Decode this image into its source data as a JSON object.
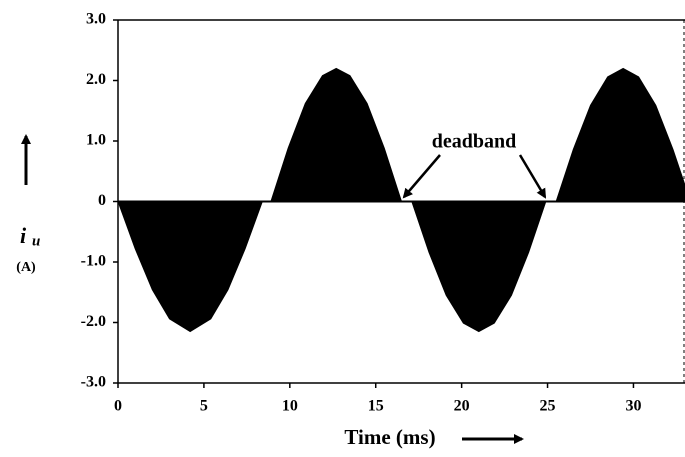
{
  "chart_data": {
    "type": "area",
    "xlabel": "Time (ms)",
    "ylabel": "i",
    "ylabel_sub": "u",
    "yunit": "(A)",
    "annotation": "deadband",
    "color": "#000000",
    "x": [
      0,
      1,
      2,
      3,
      4.2,
      5.4,
      6.4,
      7.4,
      8.4,
      8.9,
      9.9,
      10.9,
      11.9,
      12.7,
      13.5,
      14.5,
      15.5,
      16.5,
      17.1,
      18.1,
      19.1,
      20.1,
      21,
      21.9,
      22.9,
      23.9,
      24.9,
      25.5,
      26.5,
      27.5,
      28.5,
      29.4,
      30.3,
      31.3,
      32.3,
      33
    ],
    "values": [
      0,
      -0.78,
      -1.46,
      -1.94,
      -2.15,
      -1.94,
      -1.46,
      -0.78,
      0,
      0,
      0.88,
      1.62,
      2.08,
      2.2,
      2.08,
      1.62,
      0.88,
      0,
      0,
      -0.84,
      -1.55,
      -2.01,
      -2.15,
      -2.01,
      -1.55,
      -0.84,
      0,
      0,
      0.86,
      1.59,
      2.06,
      2.2,
      2.06,
      1.59,
      0.86,
      0.27
    ],
    "xlim": [
      0,
      33
    ],
    "ylim": [
      -3,
      3
    ],
    "xticks": [
      0,
      5,
      10,
      15,
      20,
      25,
      30
    ],
    "yticks": [
      {
        "value": 3,
        "label": "3.0"
      },
      {
        "value": 2,
        "label": "2.0"
      },
      {
        "value": 1,
        "label": "1.0"
      },
      0,
      {
        "value": -1,
        "label": "-1.0"
      },
      {
        "value": -2,
        "label": "-2.0"
      },
      {
        "value": -3,
        "label": "-3.0"
      }
    ]
  }
}
